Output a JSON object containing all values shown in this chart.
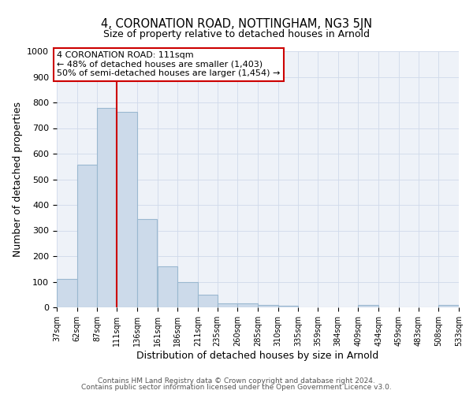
{
  "title": "4, CORONATION ROAD, NOTTINGHAM, NG3 5JN",
  "subtitle": "Size of property relative to detached houses in Arnold",
  "xlabel": "Distribution of detached houses by size in Arnold",
  "ylabel": "Number of detached properties",
  "bar_color": "#ccdaea",
  "bar_edge_color": "#9ab8d0",
  "grid_color": "#d0daea",
  "background_color": "#eef2f8",
  "vline_x": 111,
  "vline_color": "#cc0000",
  "bin_edges": [
    37,
    62,
    87,
    111,
    136,
    161,
    186,
    211,
    235,
    260,
    285,
    310,
    335,
    359,
    384,
    409,
    434,
    459,
    483,
    508,
    533
  ],
  "bar_heights": [
    112,
    558,
    780,
    762,
    345,
    160,
    97,
    50,
    15,
    15,
    8,
    5,
    0,
    0,
    0,
    10,
    0,
    0,
    0,
    8
  ],
  "tick_labels": [
    "37sqm",
    "62sqm",
    "87sqm",
    "111sqm",
    "136sqm",
    "161sqm",
    "186sqm",
    "211sqm",
    "235sqm",
    "260sqm",
    "285sqm",
    "310sqm",
    "335sqm",
    "359sqm",
    "384sqm",
    "409sqm",
    "434sqm",
    "459sqm",
    "483sqm",
    "508sqm",
    "533sqm"
  ],
  "ylim": [
    0,
    1000
  ],
  "yticks": [
    0,
    100,
    200,
    300,
    400,
    500,
    600,
    700,
    800,
    900,
    1000
  ],
  "annotation_title": "4 CORONATION ROAD: 111sqm",
  "annotation_line1": "← 48% of detached houses are smaller (1,403)",
  "annotation_line2": "50% of semi-detached houses are larger (1,454) →",
  "annotation_box_color": "#ffffff",
  "annotation_box_edge": "#cc0000",
  "footer_line1": "Contains HM Land Registry data © Crown copyright and database right 2024.",
  "footer_line2": "Contains public sector information licensed under the Open Government Licence v3.0."
}
